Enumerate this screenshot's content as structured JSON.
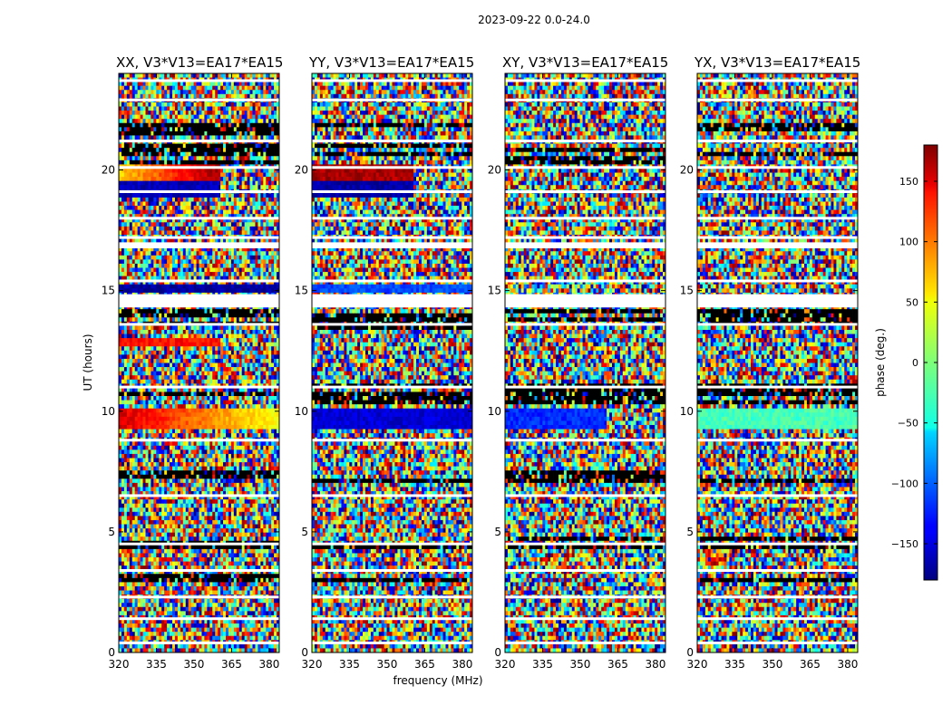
{
  "chart_data": {
    "type": "heatmap",
    "title": "2023-09-22 0.0-24.0",
    "xlabel": "frequency (MHz)",
    "ylabel": "UT (hours)",
    "xlim": [
      320,
      384
    ],
    "ylim": [
      0,
      24
    ],
    "x_ticks": [
      320,
      335,
      350,
      365,
      380
    ],
    "y_ticks": [
      0,
      5,
      10,
      15,
      20
    ],
    "colormap": "jet",
    "colorbar": {
      "label": "phase (deg.)",
      "range": [
        -180,
        180
      ],
      "ticks": [
        -150,
        -100,
        -50,
        0,
        50,
        100,
        150
      ],
      "tick_labels": [
        "−150",
        "−100",
        "−50",
        "0",
        "50",
        "100",
        "150"
      ]
    },
    "panels": [
      {
        "title": "XX, V3*V13=EA17*EA15",
        "features": [
          {
            "ut_range": [
              18.8,
              20.2
            ],
            "freq_range": [
              320,
              360
            ],
            "phase_start": 60,
            "phase_end": 170,
            "note": "coherent gradient"
          },
          {
            "ut_range": [
              18.8,
              19.5
            ],
            "freq_range": [
              320,
              360
            ],
            "phase": -160,
            "note": "coherent"
          },
          {
            "ut_range": [
              9.3,
              10.1
            ],
            "freq_range": [
              320,
              384
            ],
            "phase_start": 150,
            "phase_end": 40,
            "note": "coherent"
          },
          {
            "ut_range": [
              12.7,
              13.0
            ],
            "freq_range": [
              320,
              360
            ],
            "phase": 130,
            "note": "coherent"
          },
          {
            "ut_range": [
              15.0,
              15.2
            ],
            "freq_range": [
              320,
              384
            ],
            "phase": -170,
            "note": "coherent"
          }
        ]
      },
      {
        "title": "YY, V3*V13=EA17*EA15",
        "features": [
          {
            "ut_range": [
              19.5,
              20.2
            ],
            "freq_range": [
              320,
              360
            ],
            "phase": 165,
            "note": "coherent"
          },
          {
            "ut_range": [
              18.8,
              19.5
            ],
            "freq_range": [
              320,
              360
            ],
            "phase": -165,
            "note": "coherent"
          },
          {
            "ut_range": [
              9.3,
              10.1
            ],
            "freq_range": [
              320,
              384
            ],
            "phase": -150,
            "note": "coherent"
          },
          {
            "ut_range": [
              15.0,
              15.2
            ],
            "freq_range": [
              320,
              384
            ],
            "phase": -110,
            "note": "coherent"
          }
        ]
      },
      {
        "title": "XY, V3*V13=EA17*EA15",
        "features": [
          {
            "ut_range": [
              9.3,
              10.1
            ],
            "freq_range": [
              320,
              360
            ],
            "phase": -120,
            "note": "partly coherent"
          }
        ]
      },
      {
        "title": "YX, V3*V13=EA17*EA15",
        "features": [
          {
            "ut_range": [
              9.3,
              10.1
            ],
            "freq_range": [
              320,
              384
            ],
            "phase": -20,
            "note": "partly coherent"
          }
        ]
      }
    ],
    "blank_ut_rows": [
      23.7,
      22.9,
      21.2,
      20.1,
      19.1,
      18.0,
      17.2,
      16.9,
      15.4,
      14.7,
      14.5,
      13.6,
      11.0,
      8.8,
      6.5,
      4.5,
      3.4,
      2.3,
      1.4,
      0.4
    ],
    "dark_ut_bands": [
      [
        21.4,
        22.0
      ],
      [
        20.3,
        21.0
      ],
      [
        13.3,
        14.2
      ],
      [
        10.3,
        11.1
      ],
      [
        7.0,
        7.6
      ],
      [
        4.3,
        4.8
      ],
      [
        3.0,
        3.3
      ]
    ]
  }
}
